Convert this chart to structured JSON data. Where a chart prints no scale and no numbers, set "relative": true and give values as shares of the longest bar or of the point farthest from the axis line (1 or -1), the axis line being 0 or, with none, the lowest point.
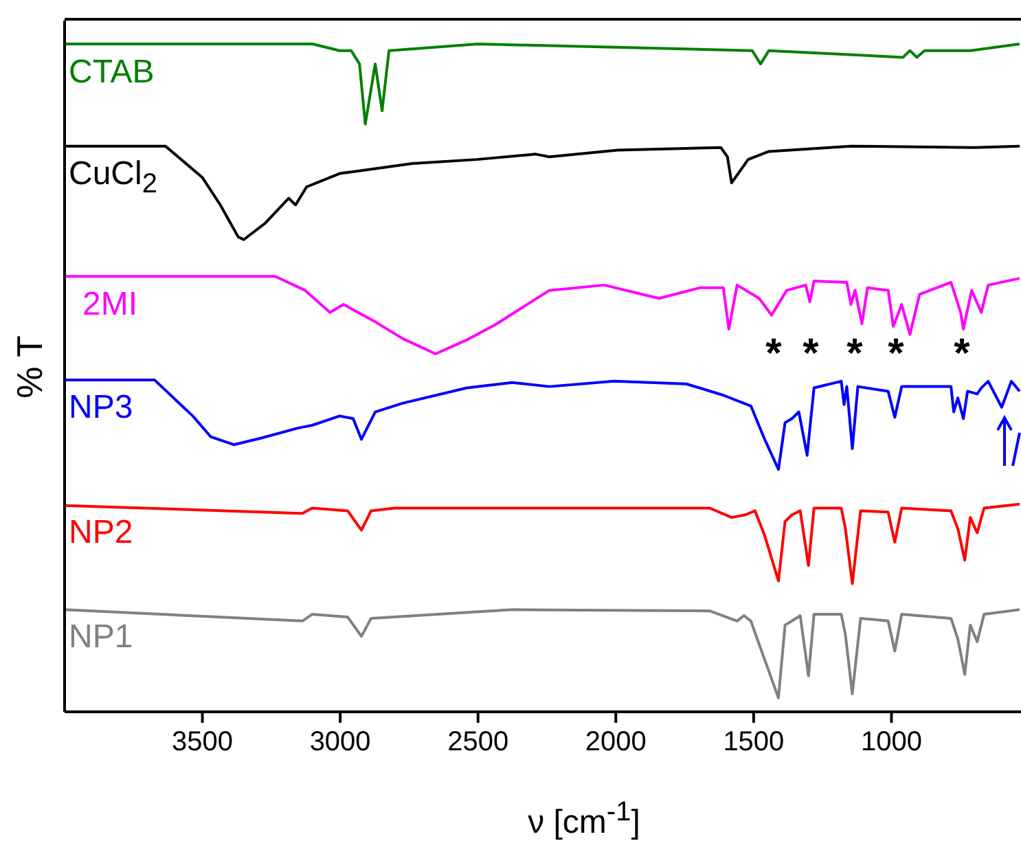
{
  "chart_data": {
    "type": "line",
    "relative": true,
    "xlabel": "ν [cm$^{-1}$]",
    "ylabel": "% T",
    "xlim": [
      4000,
      530
    ],
    "xticks": [
      3500,
      3000,
      2500,
      2000,
      1500,
      1000
    ],
    "series": [
      {
        "name": "CTAB",
        "color": "#008000",
        "x": [
          4000,
          3100,
          3002,
          2960,
          2930,
          2909,
          2873,
          2848,
          2823,
          2500,
          1505,
          1475,
          1445,
          958,
          933,
          908,
          880,
          714,
          535
        ],
        "values": [
          1,
          1,
          0.99,
          0.99,
          0.97,
          0.88,
          0.97,
          0.9,
          0.99,
          1,
          0.99,
          0.97,
          0.99,
          0.98,
          0.99,
          0.98,
          0.99,
          0.99,
          1
        ]
      },
      {
        "name": "CuCl$_{2}$",
        "color": "#000000",
        "x": [
          4000,
          3634,
          3500,
          3435,
          3370,
          3350,
          3271,
          3187,
          3162,
          3122,
          3002,
          2739,
          2505,
          2291,
          2241,
          1993,
          1619,
          1595,
          1580,
          1520,
          1445,
          1147,
          699,
          535
        ],
        "values": [
          0.847,
          0.847,
          0.8,
          0.759,
          0.711,
          0.707,
          0.732,
          0.769,
          0.759,
          0.786,
          0.806,
          0.821,
          0.827,
          0.835,
          0.831,
          0.841,
          0.845,
          0.831,
          0.792,
          0.827,
          0.839,
          0.847,
          0.845,
          0.847
        ]
      },
      {
        "name": "2MI",
        "color": "#ff00ff",
        "x": [
          4000,
          3236,
          3127,
          3037,
          2988,
          2873,
          2774,
          2654,
          2540,
          2440,
          2241,
          2042,
          1843,
          1694,
          1610,
          1590,
          1560,
          1480,
          1435,
          1380,
          1311,
          1296,
          1281,
          1162,
          1147,
          1132,
          1107,
          1087,
          1012,
          993,
          963,
          933,
          898,
          784,
          749,
          739,
          709,
          674,
          649,
          535
        ],
        "values": [
          0.652,
          0.652,
          0.631,
          0.598,
          0.61,
          0.584,
          0.559,
          0.536,
          0.557,
          0.579,
          0.631,
          0.639,
          0.619,
          0.635,
          0.635,
          0.573,
          0.639,
          0.619,
          0.594,
          0.631,
          0.639,
          0.614,
          0.645,
          0.643,
          0.61,
          0.631,
          0.581,
          0.635,
          0.631,
          0.577,
          0.61,
          0.565,
          0.625,
          0.643,
          0.598,
          0.573,
          0.631,
          0.598,
          0.639,
          0.649
        ]
      },
      {
        "name": "NP3",
        "color": "#0000ff",
        "x": [
          4000,
          3674,
          3535,
          3470,
          3386,
          3286,
          3152,
          3102,
          3002,
          2953,
          2923,
          2873,
          2774,
          2540,
          2376,
          2241,
          2007,
          1744,
          1610,
          1510,
          1460,
          1410,
          1386,
          1361,
          1336,
          1306,
          1281,
          1182,
          1172,
          1162,
          1142,
          1122,
          1012,
          988,
          963,
          784,
          774,
          759,
          739,
          724,
          689,
          674,
          649,
          600,
          565,
          535
        ],
        "values": [
          0.497,
          0.497,
          0.443,
          0.412,
          0.4,
          0.41,
          0.425,
          0.429,
          0.443,
          0.439,
          0.408,
          0.449,
          0.462,
          0.485,
          0.493,
          0.487,
          0.495,
          0.491,
          0.474,
          0.458,
          0.408,
          0.363,
          0.433,
          0.439,
          0.449,
          0.384,
          0.485,
          0.495,
          0.46,
          0.487,
          0.394,
          0.487,
          0.48,
          0.441,
          0.487,
          0.487,
          0.449,
          0.47,
          0.439,
          0.48,
          0.476,
          0.485,
          0.495,
          0.456,
          0.495,
          0.48
        ]
      },
      {
        "name": "NP2",
        "color": "#ff0000",
        "x": [
          4000,
          3137,
          3102,
          2973,
          2923,
          2888,
          2804,
          1659,
          1580,
          1530,
          1495,
          1460,
          1410,
          1386,
          1361,
          1331,
          1301,
          1281,
          1182,
          1167,
          1142,
          1112,
          1012,
          988,
          963,
          784,
          759,
          734,
          714,
          689,
          664,
          535
        ],
        "values": [
          0.309,
          0.297,
          0.305,
          0.301,
          0.272,
          0.301,
          0.305,
          0.305,
          0.291,
          0.295,
          0.301,
          0.264,
          0.196,
          0.285,
          0.295,
          0.301,
          0.219,
          0.305,
          0.305,
          0.274,
          0.192,
          0.301,
          0.299,
          0.254,
          0.305,
          0.301,
          0.274,
          0.227,
          0.291,
          0.268,
          0.305,
          0.311
        ]
      },
      {
        "name": "NP1",
        "color": "#808080",
        "x": [
          4000,
          3137,
          3102,
          2973,
          2923,
          2888,
          2376,
          1659,
          1560,
          1535,
          1510,
          1460,
          1410,
          1386,
          1361,
          1331,
          1301,
          1281,
          1182,
          1167,
          1142,
          1112,
          1012,
          988,
          963,
          784,
          759,
          734,
          714,
          689,
          664,
          535
        ],
        "values": [
          0.153,
          0.136,
          0.146,
          0.142,
          0.113,
          0.14,
          0.153,
          0.151,
          0.136,
          0.144,
          0.136,
          0.078,
          0.021,
          0.13,
          0.136,
          0.144,
          0.054,
          0.146,
          0.146,
          0.115,
          0.027,
          0.14,
          0.136,
          0.091,
          0.146,
          0.14,
          0.109,
          0.056,
          0.13,
          0.105,
          0.146,
          0.153
        ]
      }
    ],
    "annotations": [
      "*",
      "*",
      "*",
      "*",
      "*"
    ]
  }
}
